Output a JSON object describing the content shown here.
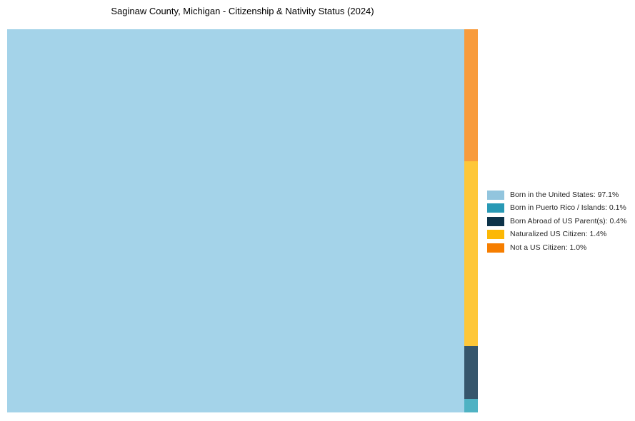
{
  "chart_data": {
    "type": "treemap",
    "title": "Saginaw County, Michigan - Citizenship & Nativity Status (2024)",
    "legend_position": "right",
    "background_color": "#ffffff",
    "items": [
      {
        "label": "Born in the United States",
        "value": 97.1,
        "fill_color": "#a4d3e9",
        "legend_color": "#92c5de"
      },
      {
        "label": "Born in Puerto Rico / Islands",
        "value": 0.1,
        "fill_color": "#4fb2c3",
        "legend_color": "#2899b5"
      },
      {
        "label": "Born Abroad of US Parent(s)",
        "value": 0.4,
        "fill_color": "#36566c",
        "legend_color": "#0d3349"
      },
      {
        "label": "Naturalized US Citizen",
        "value": 1.4,
        "fill_color": "#fec738",
        "legend_color": "#fcb805"
      },
      {
        "label": "Not a US Citizen",
        "value": 1.0,
        "fill_color": "#f89b3c",
        "legend_color": "#f67e00"
      }
    ]
  }
}
